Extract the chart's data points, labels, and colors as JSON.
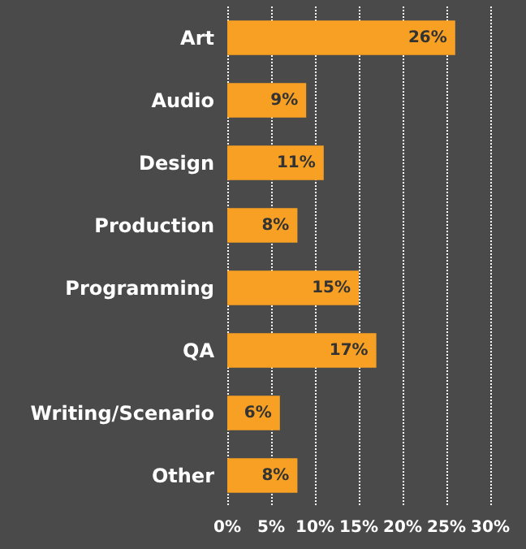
{
  "chart_data": {
    "type": "bar",
    "orientation": "horizontal",
    "categories": [
      "Art",
      "Audio",
      "Design",
      "Production",
      "Programming",
      "QA",
      "Writing/Scenario",
      "Other"
    ],
    "values": [
      26,
      9,
      11,
      8,
      15,
      17,
      6,
      8
    ],
    "value_labels": [
      "26%",
      "9%",
      "11%",
      "8%",
      "15%",
      "17%",
      "6%",
      "8%"
    ],
    "color": "#f7a023",
    "xlim": [
      0,
      30
    ],
    "xticks": [
      {
        "value": 0,
        "label": "0%"
      },
      {
        "value": 5,
        "label": "5%"
      },
      {
        "value": 10,
        "label": "10%"
      },
      {
        "value": 15,
        "label": "15%"
      },
      {
        "value": 20,
        "label": "20%"
      },
      {
        "value": 25,
        "label": "25%"
      },
      {
        "value": 30,
        "label": "30%"
      }
    ],
    "grid": "x"
  }
}
